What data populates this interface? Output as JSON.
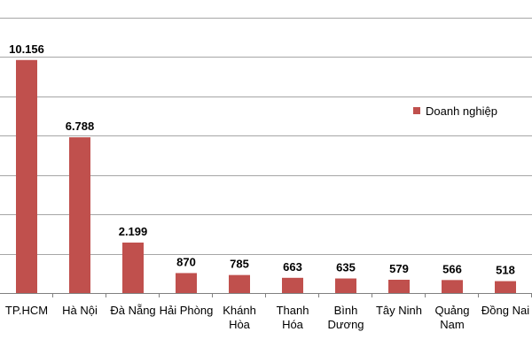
{
  "chart_data": {
    "type": "bar",
    "categories": [
      [
        "TP.HCM"
      ],
      [
        "Hà Nội"
      ],
      [
        "Đà Nẵng"
      ],
      [
        "Hải Phòng"
      ],
      [
        "Khánh",
        "Hòa"
      ],
      [
        "Thanh",
        "Hóa"
      ],
      [
        "Bình",
        "Dương"
      ],
      [
        "Tây Ninh"
      ],
      [
        "Quảng",
        "Nam"
      ],
      [
        "Đồng Nai"
      ]
    ],
    "series": [
      {
        "name": "Doanh nghiệp",
        "values": [
          10156,
          6788,
          2199,
          870,
          785,
          663,
          635,
          579,
          566,
          518
        ],
        "labels": [
          "10.156",
          "6.788",
          "2.199",
          "870",
          "785",
          "663",
          "635",
          "579",
          "566",
          "518"
        ]
      }
    ],
    "ylim": [
      0,
      12000
    ],
    "grid": true,
    "legend_position": "right",
    "colors": {
      "bar": "#C0504D",
      "grid": "#a6a6a6",
      "axis": "#808080"
    }
  }
}
